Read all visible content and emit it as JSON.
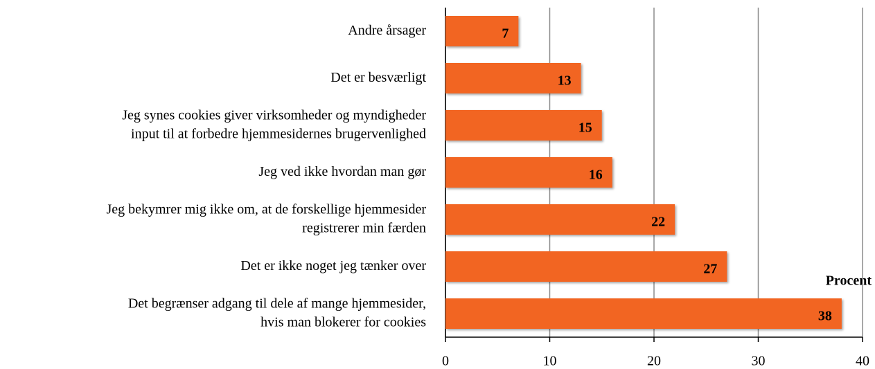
{
  "chart_data": {
    "type": "barh",
    "categories": [
      [
        "Andre årsager"
      ],
      [
        "Det er besværligt"
      ],
      [
        "Jeg synes cookies giver virksomheder og myndigheder",
        "input til at forbedre hjemmesidernes brugervenlighed"
      ],
      [
        "Jeg ved ikke hvordan man gør"
      ],
      [
        "Jeg bekymrer mig ikke om, at de forskellige hjemmesider",
        "registrerer min færden"
      ],
      [
        "Det er ikke noget jeg tænker over"
      ],
      [
        "Det begrænser adgang til dele af mange hjemmesider,",
        "hvis man blokerer for cookies"
      ]
    ],
    "values": [
      7,
      13,
      15,
      16,
      22,
      27,
      38
    ],
    "color": "#f26522",
    "xlabel": "Procent",
    "xlim": [
      0,
      40
    ],
    "xticks": [
      0,
      10,
      20,
      30,
      40
    ],
    "grid": true
  }
}
